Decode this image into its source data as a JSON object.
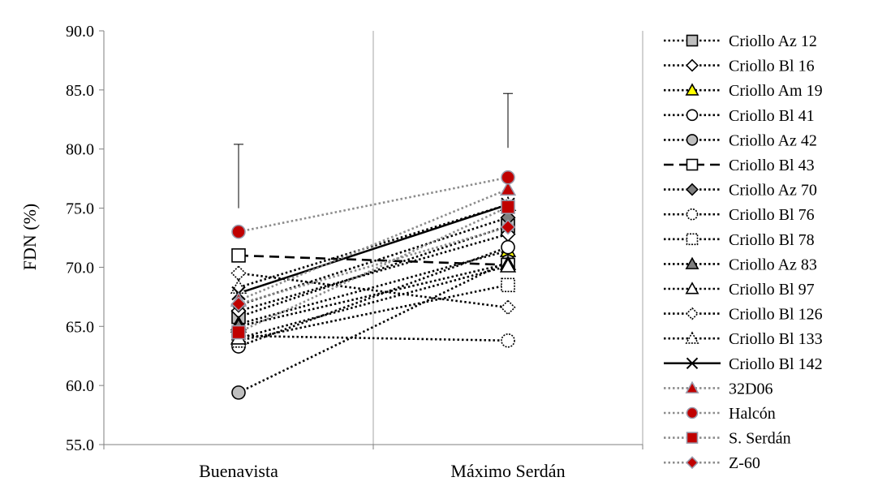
{
  "chart_data": {
    "type": "line",
    "ylabel": "FDN (%)",
    "xlabel": "",
    "categories": [
      "Buenavista",
      "Máximo Serdán"
    ],
    "ylim": [
      55.0,
      90.0
    ],
    "yticks": [
      "55.0",
      "60.0",
      "65.0",
      "70.0",
      "75.0",
      "80.0",
      "85.0",
      "90.0"
    ],
    "ytick_values": [
      55,
      60,
      65,
      70,
      75,
      80,
      85,
      90
    ],
    "grid": "vertical",
    "legend": "right",
    "error_bars": [
      {
        "category": "Buenavista",
        "from": 75.0,
        "to": 80.4
      },
      {
        "category": "Máximo Serdán",
        "from": 80.1,
        "to": 84.7
      }
    ],
    "series": [
      {
        "name": "Criollo Az 12",
        "values": [
          65.8,
          73.5
        ],
        "marker": "square",
        "fill": "#bfbfbf",
        "stroke": "#000000",
        "line": "dotted",
        "line_color": "#000000"
      },
      {
        "name": "Criollo Bl 16",
        "values": [
          66.3,
          72.8
        ],
        "marker": "diamond",
        "fill": "#ffffff",
        "stroke": "#000000",
        "line": "dotted",
        "line_color": "#000000"
      },
      {
        "name": "Criollo Am 19",
        "values": [
          65.2,
          71.4
        ],
        "marker": "triangle",
        "fill": "#ffff00",
        "stroke": "#000000",
        "line": "dotted",
        "line_color": "#000000"
      },
      {
        "name": "Criollo Bl 41",
        "values": [
          63.3,
          71.7
        ],
        "marker": "circle",
        "fill": "#ffffff",
        "stroke": "#000000",
        "line": "dotted",
        "line_color": "#000000"
      },
      {
        "name": "Criollo Az 42",
        "values": [
          59.4,
          70.5
        ],
        "marker": "circle",
        "fill": "#bfbfbf",
        "stroke": "#000000",
        "line": "dotted",
        "line_color": "#000000"
      },
      {
        "name": "Criollo Bl 43",
        "values": [
          71.0,
          70.2
        ],
        "marker": "square",
        "fill": "#ffffff",
        "stroke": "#000000",
        "line": "dashed",
        "line_color": "#000000"
      },
      {
        "name": "Criollo Az 70",
        "values": [
          66.8,
          74.2
        ],
        "marker": "diamond",
        "fill": "#7f7f7f",
        "stroke": "#000000",
        "line": "dotted",
        "line_color": "#000000"
      },
      {
        "name": "Criollo Bl 76",
        "values": [
          64.2,
          63.8
        ],
        "marker": "circle",
        "fill": "#ffffff",
        "stroke": "#000000",
        "line": "dotted",
        "line_color": "#000000",
        "dashed_marker": true
      },
      {
        "name": "Criollo Bl 78",
        "values": [
          63.8,
          68.5
        ],
        "marker": "square",
        "fill": "#ffffff",
        "stroke": "#000000",
        "line": "dotted",
        "line_color": "#000000",
        "dashed_marker": true
      },
      {
        "name": "Criollo Az 83",
        "values": [
          65.0,
          70.3
        ],
        "marker": "triangle",
        "fill": "#7f7f7f",
        "stroke": "#000000",
        "line": "dotted",
        "line_color": "#000000"
      },
      {
        "name": "Criollo Bl 97",
        "values": [
          64.0,
          70.1
        ],
        "marker": "triangle",
        "fill": "#ffffff",
        "stroke": "#000000",
        "line": "dotted",
        "line_color": "#000000"
      },
      {
        "name": "Criollo Bl 126",
        "values": [
          69.5,
          66.6
        ],
        "marker": "diamond",
        "fill": "#ffffff",
        "stroke": "#000000",
        "line": "dotted",
        "line_color": "#000000",
        "dashed_marker": true
      },
      {
        "name": "Criollo Bl 133",
        "values": [
          68.3,
          75.3
        ],
        "marker": "triangle",
        "fill": "#ffffff",
        "stroke": "#000000",
        "line": "dotted",
        "line_color": "#000000",
        "dashed_marker": true
      },
      {
        "name": "Criollo Bl 142",
        "values": [
          67.8,
          75.3
        ],
        "marker": "x",
        "fill": "none",
        "stroke": "#000000",
        "line": "solid",
        "line_color": "#000000"
      },
      {
        "name": "32D06",
        "values": [
          67.2,
          76.6
        ],
        "marker": "triangle",
        "fill": "#c00000",
        "stroke": "#9999aa",
        "line": "dotted",
        "line_color": "#8c8c8c"
      },
      {
        "name": "Halcón",
        "values": [
          73.0,
          77.6
        ],
        "marker": "circle",
        "fill": "#c00000",
        "stroke": "#9999aa",
        "line": "dotted",
        "line_color": "#8c8c8c"
      },
      {
        "name": "S. Serdán",
        "values": [
          64.5,
          75.1
        ],
        "marker": "square",
        "fill": "#c00000",
        "stroke": "#9999aa",
        "line": "dotted",
        "line_color": "#8c8c8c"
      },
      {
        "name": "Z-60",
        "values": [
          66.9,
          73.4
        ],
        "marker": "diamond",
        "fill": "#c00000",
        "stroke": "#9999aa",
        "line": "dotted",
        "line_color": "#8c8c8c"
      }
    ]
  }
}
